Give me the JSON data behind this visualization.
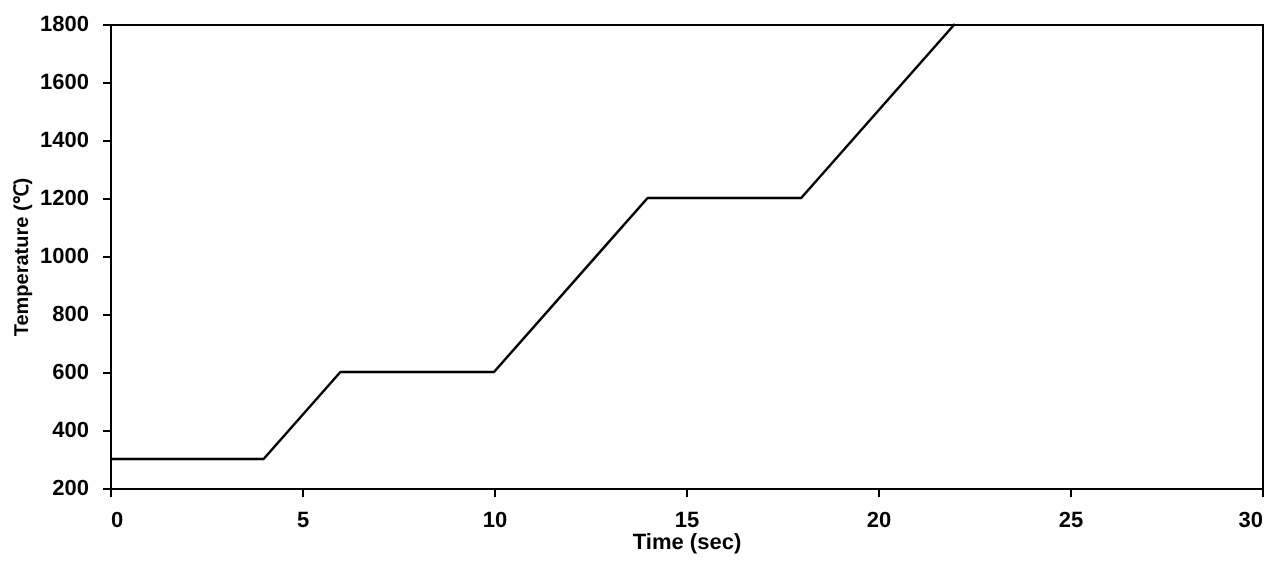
{
  "chart_data": {
    "type": "line",
    "xlabel": "Time (sec)",
    "ylabel": "Temperature (℃)",
    "x": [
      0,
      4,
      6,
      10,
      14,
      18,
      22
    ],
    "series": [
      {
        "color": "#000000",
        "values": [
          300,
          300,
          600,
          600,
          1200,
          1200,
          1800
        ]
      }
    ],
    "xlim": [
      0,
      30
    ],
    "xticks": [
      0,
      5,
      10,
      15,
      20,
      25,
      30
    ],
    "ylim": [
      200,
      1800
    ],
    "yticks": [
      200,
      400,
      600,
      800,
      1000,
      1200,
      1400,
      1600,
      1800
    ],
    "marker": "none",
    "line_style": "solid"
  }
}
